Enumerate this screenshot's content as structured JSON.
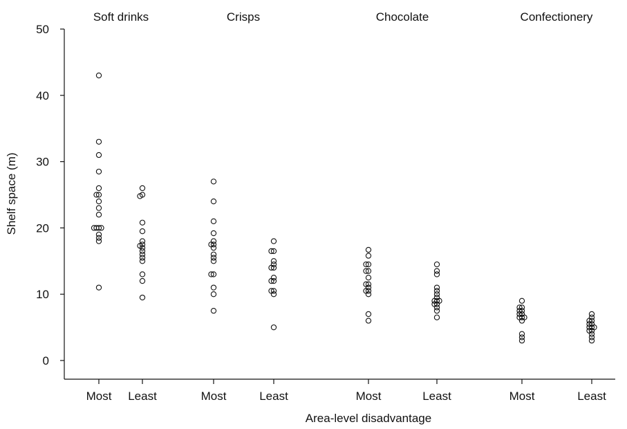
{
  "chart_data": {
    "type": "scatter",
    "title": "",
    "xlabel": "Area-level disadvantage",
    "ylabel": "Shelf space (m)",
    "ylim": [
      -3,
      50
    ],
    "yticks": [
      0,
      10,
      20,
      30,
      40,
      50
    ],
    "grid": false,
    "marker": "open-circle",
    "groups": [
      {
        "name": "Soft drinks",
        "categories": [
          {
            "label": "Most",
            "values": [
              43,
              33,
              31,
              28.5,
              26,
              25,
              25,
              24,
              23,
              22,
              20,
              20,
              20,
              20,
              19,
              18.5,
              18,
              11
            ]
          },
          {
            "label": "Least",
            "values": [
              26,
              25,
              24.8,
              20.8,
              19.5,
              18,
              17.5,
              17.3,
              17,
              16.5,
              16,
              15.5,
              15,
              13,
              12,
              9.5
            ]
          }
        ]
      },
      {
        "name": "Crisps",
        "categories": [
          {
            "label": "Most",
            "values": [
              27,
              24,
              21,
              19.2,
              18,
              17.5,
              17.5,
              17,
              16,
              15.5,
              15,
              13,
              13,
              11,
              10,
              7.5
            ]
          },
          {
            "label": "Least",
            "values": [
              18,
              16.5,
              16.5,
              15,
              14.5,
              14,
              14,
              12.5,
              12,
              12,
              10.5,
              10.5,
              10,
              5
            ]
          }
        ]
      },
      {
        "name": "Chocolate",
        "categories": [
          {
            "label": "Most",
            "values": [
              16.7,
              15.8,
              14.5,
              14.5,
              13.5,
              13.5,
              12.5,
              11.5,
              11.5,
              11,
              10.5,
              10.5,
              10,
              7,
              6
            ]
          },
          {
            "label": "Least",
            "values": [
              14.5,
              13.5,
              13,
              11,
              10.5,
              10,
              9.5,
              9,
              9,
              9,
              8.5,
              8.5,
              8,
              7.5,
              6.5
            ]
          }
        ]
      },
      {
        "name": "Confectionery",
        "categories": [
          {
            "label": "Most",
            "values": [
              9,
              8,
              8,
              7.5,
              7.5,
              7,
              7,
              6.5,
              6.5,
              6.5,
              6,
              4,
              3.5,
              3
            ]
          },
          {
            "label": "Least",
            "values": [
              7,
              6.5,
              6,
              6,
              5.5,
              5.5,
              5,
              5,
              5,
              4.5,
              4.5,
              4,
              3.5,
              3
            ]
          }
        ]
      }
    ]
  }
}
